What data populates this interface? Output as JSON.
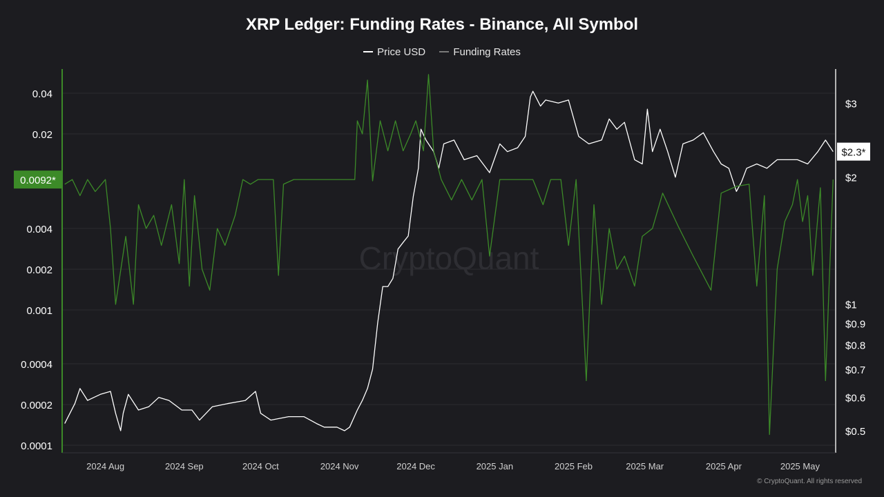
{
  "chart_data": {
    "type": "line",
    "title": "XRP Ledger: Funding Rates - Binance, All Symbol",
    "watermark": "CryptoQuant",
    "copyright": "© CryptoQuant. All rights reserved",
    "background": "#1c1c20",
    "grid": true,
    "legend_position": "top-center",
    "x_axis": {
      "type": "date",
      "range": [
        "2024-07-15",
        "2025-05-15"
      ],
      "ticks": [
        {
          "date": "2024-08-01",
          "label": "2024 Aug"
        },
        {
          "date": "2024-09-01",
          "label": "2024 Sep"
        },
        {
          "date": "2024-10-01",
          "label": "2024 Oct"
        },
        {
          "date": "2024-11-01",
          "label": "2024 Nov"
        },
        {
          "date": "2024-12-01",
          "label": "2024 Dec"
        },
        {
          "date": "2025-01-01",
          "label": "2025 Jan"
        },
        {
          "date": "2025-02-01",
          "label": "2025 Feb"
        },
        {
          "date": "2025-03-01",
          "label": "2025 Mar"
        },
        {
          "date": "2025-04-01",
          "label": "2025 Apr"
        },
        {
          "date": "2025-05-01",
          "label": "2025 May"
        }
      ]
    },
    "left_axis": {
      "scale": "log",
      "range": [
        0.0001,
        0.045
      ],
      "ticks": [
        {
          "value": 0.0001,
          "label": "0.0001"
        },
        {
          "value": 0.0002,
          "label": "0.0002"
        },
        {
          "value": 0.0004,
          "label": "0.0004"
        },
        {
          "value": 0.001,
          "label": "0.001"
        },
        {
          "value": 0.002,
          "label": "0.002"
        },
        {
          "value": 0.004,
          "label": "0.004"
        },
        {
          "value": 0.02,
          "label": "0.02"
        },
        {
          "value": 0.04,
          "label": "0.04"
        }
      ],
      "current_label": "0.0092*",
      "current_value": 0.0092,
      "color": "#3c8a28"
    },
    "right_axis": {
      "scale": "log",
      "range": [
        0.5,
        3.3
      ],
      "ticks": [
        {
          "value": 0.5,
          "label": "$0.5"
        },
        {
          "value": 0.6,
          "label": "$0.6"
        },
        {
          "value": 0.7,
          "label": "$0.7"
        },
        {
          "value": 0.8,
          "label": "$0.8"
        },
        {
          "value": 0.9,
          "label": "$0.9"
        },
        {
          "value": 1,
          "label": "$1"
        },
        {
          "value": 2,
          "label": "$2"
        },
        {
          "value": 3,
          "label": "$3"
        }
      ],
      "current_label": "$2.3*",
      "current_value": 2.3,
      "color": "#ffffff"
    },
    "series": [
      {
        "name": "Price USD",
        "axis": "right",
        "color": "#ffffff",
        "points": [
          [
            "2024-07-16",
            0.52
          ],
          [
            "2024-07-20",
            0.58
          ],
          [
            "2024-07-22",
            0.63
          ],
          [
            "2024-07-25",
            0.59
          ],
          [
            "2024-07-30",
            0.61
          ],
          [
            "2024-08-03",
            0.62
          ],
          [
            "2024-08-05",
            0.55
          ],
          [
            "2024-08-07",
            0.5
          ],
          [
            "2024-08-08",
            0.55
          ],
          [
            "2024-08-10",
            0.61
          ],
          [
            "2024-08-14",
            0.56
          ],
          [
            "2024-08-18",
            0.57
          ],
          [
            "2024-08-22",
            0.6
          ],
          [
            "2024-08-26",
            0.59
          ],
          [
            "2024-08-31",
            0.56
          ],
          [
            "2024-09-04",
            0.56
          ],
          [
            "2024-09-07",
            0.53
          ],
          [
            "2024-09-12",
            0.57
          ],
          [
            "2024-09-18",
            0.58
          ],
          [
            "2024-09-25",
            0.59
          ],
          [
            "2024-09-29",
            0.62
          ],
          [
            "2024-10-01",
            0.55
          ],
          [
            "2024-10-05",
            0.53
          ],
          [
            "2024-10-12",
            0.54
          ],
          [
            "2024-10-18",
            0.54
          ],
          [
            "2024-10-23",
            0.52
          ],
          [
            "2024-10-26",
            0.51
          ],
          [
            "2024-10-31",
            0.51
          ],
          [
            "2024-11-03",
            0.5
          ],
          [
            "2024-11-05",
            0.51
          ],
          [
            "2024-11-08",
            0.56
          ],
          [
            "2024-11-10",
            0.59
          ],
          [
            "2024-11-12",
            0.63
          ],
          [
            "2024-11-14",
            0.7
          ],
          [
            "2024-11-16",
            0.9
          ],
          [
            "2024-11-18",
            1.1
          ],
          [
            "2024-11-20",
            1.1
          ],
          [
            "2024-11-22",
            1.15
          ],
          [
            "2024-11-24",
            1.35
          ],
          [
            "2024-11-26",
            1.4
          ],
          [
            "2024-11-28",
            1.45
          ],
          [
            "2024-11-30",
            1.8
          ],
          [
            "2024-12-02",
            2.1
          ],
          [
            "2024-12-03",
            2.6
          ],
          [
            "2024-12-05",
            2.45
          ],
          [
            "2024-12-08",
            2.3
          ],
          [
            "2024-12-10",
            2.1
          ],
          [
            "2024-12-12",
            2.4
          ],
          [
            "2024-12-16",
            2.45
          ],
          [
            "2024-12-20",
            2.2
          ],
          [
            "2024-12-25",
            2.25
          ],
          [
            "2024-12-30",
            2.05
          ],
          [
            "2025-01-03",
            2.4
          ],
          [
            "2025-01-06",
            2.3
          ],
          [
            "2025-01-10",
            2.35
          ],
          [
            "2025-01-13",
            2.5
          ],
          [
            "2025-01-15",
            3.1
          ],
          [
            "2025-01-16",
            3.2
          ],
          [
            "2025-01-19",
            2.95
          ],
          [
            "2025-01-21",
            3.05
          ],
          [
            "2025-01-26",
            3.0
          ],
          [
            "2025-01-30",
            3.05
          ],
          [
            "2025-02-03",
            2.5
          ],
          [
            "2025-02-07",
            2.4
          ],
          [
            "2025-02-12",
            2.45
          ],
          [
            "2025-02-15",
            2.75
          ],
          [
            "2025-02-18",
            2.6
          ],
          [
            "2025-02-21",
            2.7
          ],
          [
            "2025-02-25",
            2.2
          ],
          [
            "2025-02-28",
            2.15
          ],
          [
            "2025-03-02",
            2.9
          ],
          [
            "2025-03-04",
            2.3
          ],
          [
            "2025-03-07",
            2.6
          ],
          [
            "2025-03-10",
            2.3
          ],
          [
            "2025-03-13",
            2.0
          ],
          [
            "2025-03-16",
            2.4
          ],
          [
            "2025-03-20",
            2.45
          ],
          [
            "2025-03-24",
            2.55
          ],
          [
            "2025-03-28",
            2.3
          ],
          [
            "2025-03-31",
            2.15
          ],
          [
            "2025-04-03",
            2.1
          ],
          [
            "2025-04-06",
            1.85
          ],
          [
            "2025-04-08",
            1.95
          ],
          [
            "2025-04-10",
            2.1
          ],
          [
            "2025-04-14",
            2.15
          ],
          [
            "2025-04-18",
            2.1
          ],
          [
            "2025-04-22",
            2.2
          ],
          [
            "2025-04-25",
            2.2
          ],
          [
            "2025-04-30",
            2.2
          ],
          [
            "2025-05-04",
            2.15
          ],
          [
            "2025-05-08",
            2.3
          ],
          [
            "2025-05-11",
            2.45
          ],
          [
            "2025-05-14",
            2.3
          ]
        ]
      },
      {
        "name": "Funding Rates",
        "axis": "left",
        "color": "#3c8a28",
        "points": [
          [
            "2024-07-16",
            0.0085
          ],
          [
            "2024-07-19",
            0.0092
          ],
          [
            "2024-07-22",
            0.007
          ],
          [
            "2024-07-25",
            0.0092
          ],
          [
            "2024-07-28",
            0.0075
          ],
          [
            "2024-08-01",
            0.0092
          ],
          [
            "2024-08-03",
            0.004
          ],
          [
            "2024-08-05",
            0.0011
          ],
          [
            "2024-08-09",
            0.0035
          ],
          [
            "2024-08-12",
            0.0011
          ],
          [
            "2024-08-14",
            0.006
          ],
          [
            "2024-08-17",
            0.004
          ],
          [
            "2024-08-20",
            0.005
          ],
          [
            "2024-08-23",
            0.003
          ],
          [
            "2024-08-27",
            0.006
          ],
          [
            "2024-08-30",
            0.0022
          ],
          [
            "2024-09-01",
            0.0092
          ],
          [
            "2024-09-03",
            0.0015
          ],
          [
            "2024-09-05",
            0.007
          ],
          [
            "2024-09-08",
            0.002
          ],
          [
            "2024-09-11",
            0.0014
          ],
          [
            "2024-09-14",
            0.004
          ],
          [
            "2024-09-17",
            0.003
          ],
          [
            "2024-09-21",
            0.005
          ],
          [
            "2024-09-24",
            0.0092
          ],
          [
            "2024-09-27",
            0.0085
          ],
          [
            "2024-09-30",
            0.0092
          ],
          [
            "2024-10-03",
            0.0092
          ],
          [
            "2024-10-06",
            0.0092
          ],
          [
            "2024-10-08",
            0.0018
          ],
          [
            "2024-10-10",
            0.0085
          ],
          [
            "2024-10-14",
            0.0092
          ],
          [
            "2024-10-18",
            0.0092
          ],
          [
            "2024-10-22",
            0.0092
          ],
          [
            "2024-10-26",
            0.0092
          ],
          [
            "2024-10-29",
            0.0092
          ],
          [
            "2024-11-01",
            0.0092
          ],
          [
            "2024-11-04",
            0.0092
          ],
          [
            "2024-11-07",
            0.0092
          ],
          [
            "2024-11-08",
            0.025
          ],
          [
            "2024-11-10",
            0.02
          ],
          [
            "2024-11-12",
            0.05
          ],
          [
            "2024-11-14",
            0.009
          ],
          [
            "2024-11-17",
            0.025
          ],
          [
            "2024-11-20",
            0.015
          ],
          [
            "2024-11-23",
            0.025
          ],
          [
            "2024-11-26",
            0.015
          ],
          [
            "2024-11-29",
            0.02
          ],
          [
            "2024-12-01",
            0.025
          ],
          [
            "2024-12-04",
            0.015
          ],
          [
            "2024-12-06",
            0.055
          ],
          [
            "2024-12-08",
            0.015
          ],
          [
            "2024-12-11",
            0.0092
          ],
          [
            "2024-12-15",
            0.0065
          ],
          [
            "2024-12-19",
            0.0092
          ],
          [
            "2024-12-23",
            0.0065
          ],
          [
            "2024-12-27",
            0.0092
          ],
          [
            "2024-12-30",
            0.0025
          ],
          [
            "2025-01-03",
            0.0092
          ],
          [
            "2025-01-07",
            0.0092
          ],
          [
            "2025-01-12",
            0.0092
          ],
          [
            "2025-01-16",
            0.0092
          ],
          [
            "2025-01-20",
            0.006
          ],
          [
            "2025-01-23",
            0.0092
          ],
          [
            "2025-01-27",
            0.0092
          ],
          [
            "2025-01-30",
            0.003
          ],
          [
            "2025-02-02",
            0.0092
          ],
          [
            "2025-02-06",
            0.0003
          ],
          [
            "2025-02-09",
            0.006
          ],
          [
            "2025-02-12",
            0.0011
          ],
          [
            "2025-02-15",
            0.004
          ],
          [
            "2025-02-18",
            0.002
          ],
          [
            "2025-02-21",
            0.0025
          ],
          [
            "2025-02-25",
            0.0015
          ],
          [
            "2025-02-28",
            0.0035
          ],
          [
            "2025-03-04",
            0.004
          ],
          [
            "2025-03-08",
            0.0073
          ],
          [
            "2025-03-14",
            0.0042
          ],
          [
            "2025-03-20",
            0.0025
          ],
          [
            "2025-03-27",
            0.0014
          ],
          [
            "2025-03-31",
            0.0073
          ],
          [
            "2025-04-06",
            0.0082
          ],
          [
            "2025-04-11",
            0.0085
          ],
          [
            "2025-04-14",
            0.0015
          ],
          [
            "2025-04-17",
            0.007
          ],
          [
            "2025-04-19",
            0.00012
          ],
          [
            "2025-04-22",
            0.002
          ],
          [
            "2025-04-25",
            0.0045
          ],
          [
            "2025-04-28",
            0.006
          ],
          [
            "2025-04-30",
            0.0092
          ],
          [
            "2025-05-02",
            0.0045
          ],
          [
            "2025-05-04",
            0.007
          ],
          [
            "2025-05-06",
            0.0018
          ],
          [
            "2025-05-09",
            0.008
          ],
          [
            "2025-05-11",
            0.0003
          ],
          [
            "2025-05-14",
            0.0092
          ]
        ]
      }
    ]
  }
}
